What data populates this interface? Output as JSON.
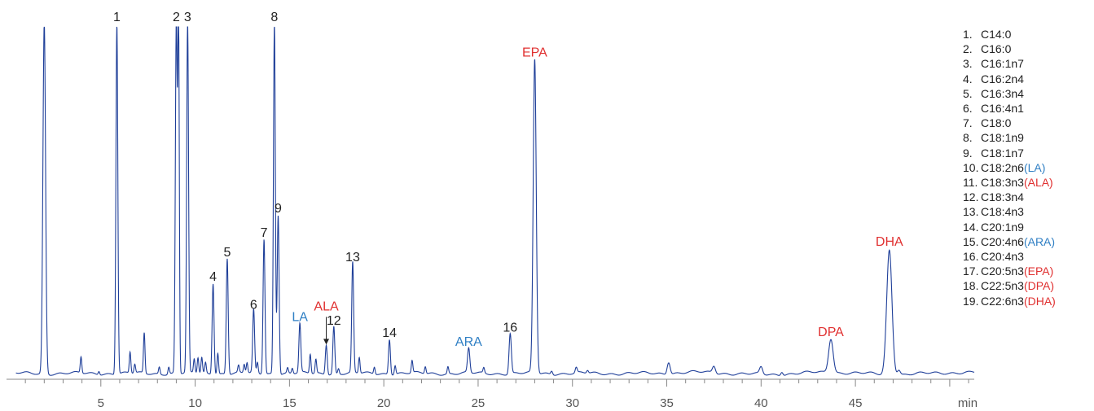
{
  "colors": {
    "trace": "#1f3f99",
    "axis": "#888888",
    "text": "#222222",
    "red": "#e03030",
    "blue": "#2f7fc4"
  },
  "chart_data": {
    "type": "line",
    "xlabel": "min",
    "xlim": [
      0,
      51.3
    ],
    "ylim": [
      0,
      100
    ],
    "xticks": [
      5,
      10,
      15,
      20,
      25,
      30,
      35,
      40,
      45
    ],
    "baseline": 1.2,
    "series": [
      {
        "peaks": [
          {
            "t": 2.0,
            "h": 100,
            "w": 0.07
          },
          {
            "t": 3.95,
            "h": 4.6,
            "w": 0.04
          },
          {
            "t": 4.9,
            "h": 1.0,
            "w": 0.04
          },
          {
            "t": 5.85,
            "h": 100,
            "w": 0.05,
            "label": "1"
          },
          {
            "t": 6.55,
            "h": 6.0,
            "w": 0.04
          },
          {
            "t": 6.8,
            "h": 2.5,
            "w": 0.04
          },
          {
            "t": 7.3,
            "h": 11.5,
            "w": 0.04
          },
          {
            "t": 8.1,
            "h": 2.0,
            "w": 0.04
          },
          {
            "t": 8.6,
            "h": 2.0,
            "w": 0.04
          },
          {
            "t": 9.0,
            "h": 100,
            "w": 0.05,
            "label": "2"
          },
          {
            "t": 9.12,
            "h": 100,
            "w": 0.04
          },
          {
            "t": 9.6,
            "h": 100,
            "w": 0.05,
            "label": "3"
          },
          {
            "t": 9.95,
            "h": 4.0,
            "w": 0.04
          },
          {
            "t": 10.15,
            "h": 4.5,
            "w": 0.04
          },
          {
            "t": 10.35,
            "h": 4.5,
            "w": 0.04
          },
          {
            "t": 10.55,
            "h": 3.0,
            "w": 0.04
          },
          {
            "t": 10.95,
            "h": 26.0,
            "w": 0.05,
            "label": "4"
          },
          {
            "t": 11.2,
            "h": 6.0,
            "w": 0.04
          },
          {
            "t": 11.7,
            "h": 33.0,
            "w": 0.05,
            "label": "5"
          },
          {
            "t": 12.3,
            "h": 2.0,
            "w": 0.04
          },
          {
            "t": 12.6,
            "h": 2.5,
            "w": 0.04
          },
          {
            "t": 12.75,
            "h": 3.0,
            "w": 0.04
          },
          {
            "t": 13.1,
            "h": 18.0,
            "w": 0.05,
            "label": "6"
          },
          {
            "t": 13.3,
            "h": 3.0,
            "w": 0.04
          },
          {
            "t": 13.65,
            "h": 38.5,
            "w": 0.05,
            "label": "7"
          },
          {
            "t": 14.2,
            "h": 100,
            "w": 0.05,
            "label": "8"
          },
          {
            "t": 14.4,
            "h": 45.5,
            "w": 0.05,
            "label": "9"
          },
          {
            "t": 14.9,
            "h": 1.5,
            "w": 0.04
          },
          {
            "t": 15.15,
            "h": 1.5,
            "w": 0.04
          },
          {
            "t": 15.55,
            "h": 14.0,
            "w": 0.05
          },
          {
            "t": 16.1,
            "h": 5.5,
            "w": 0.04
          },
          {
            "t": 16.4,
            "h": 4.0,
            "w": 0.04
          },
          {
            "t": 16.95,
            "h": 8.5,
            "w": 0.05
          },
          {
            "t": 17.35,
            "h": 13.5,
            "w": 0.05,
            "label": "12"
          },
          {
            "t": 17.6,
            "h": 1.5,
            "w": 0.04
          },
          {
            "t": 18.35,
            "h": 31.5,
            "w": 0.05,
            "label": "13"
          },
          {
            "t": 18.7,
            "h": 4.5,
            "w": 0.04
          },
          {
            "t": 19.5,
            "h": 2.0,
            "w": 0.04
          },
          {
            "t": 20.3,
            "h": 10.0,
            "w": 0.05,
            "label": "14"
          },
          {
            "t": 20.6,
            "h": 2.5,
            "w": 0.04
          },
          {
            "t": 21.5,
            "h": 3.5,
            "w": 0.04
          },
          {
            "t": 22.2,
            "h": 2.0,
            "w": 0.04
          },
          {
            "t": 23.4,
            "h": 2.0,
            "w": 0.04
          },
          {
            "t": 24.5,
            "h": 7.0,
            "w": 0.06
          },
          {
            "t": 25.3,
            "h": 1.5,
            "w": 0.04
          },
          {
            "t": 26.7,
            "h": 11.5,
            "w": 0.06,
            "label": "16"
          },
          {
            "t": 28.0,
            "h": 89.5,
            "w": 0.08
          },
          {
            "t": 28.9,
            "h": 1.0,
            "w": 0.05
          },
          {
            "t": 30.2,
            "h": 1.5,
            "w": 0.05
          },
          {
            "t": 30.8,
            "h": 0.8,
            "w": 0.05
          },
          {
            "t": 35.1,
            "h": 3.5,
            "w": 0.08
          },
          {
            "t": 37.5,
            "h": 2.0,
            "w": 0.08
          },
          {
            "t": 40.0,
            "h": 2.0,
            "w": 0.08
          },
          {
            "t": 41.1,
            "h": 1.0,
            "w": 0.06
          },
          {
            "t": 43.7,
            "h": 9.8,
            "w": 0.12
          },
          {
            "t": 46.8,
            "h": 35.5,
            "w": 0.14
          },
          {
            "t": 47.3,
            "h": 1.5,
            "w": 0.08
          }
        ]
      }
    ],
    "annotations": [
      {
        "text": "LA",
        "t": 15.55,
        "h": 14.0,
        "color": "blue"
      },
      {
        "text": "ALA",
        "t": 16.95,
        "h": 8.5,
        "color": "red",
        "arrow": true
      },
      {
        "text": "ARA",
        "t": 24.5,
        "h": 7.0,
        "color": "blue"
      },
      {
        "text": "EPA",
        "t": 28.0,
        "h": 89.5,
        "color": "red"
      },
      {
        "text": "DPA",
        "t": 43.7,
        "h": 9.8,
        "color": "red"
      },
      {
        "text": "DHA",
        "t": 46.8,
        "h": 35.5,
        "color": "red"
      }
    ]
  },
  "legend": {
    "items": [
      {
        "num": "1.",
        "name": "C14:0",
        "abbr": "",
        "abbr_color": ""
      },
      {
        "num": "2.",
        "name": "C16:0",
        "abbr": "",
        "abbr_color": ""
      },
      {
        "num": "3.",
        "name": "C16:1n7",
        "abbr": "",
        "abbr_color": ""
      },
      {
        "num": "4.",
        "name": "C16:2n4",
        "abbr": "",
        "abbr_color": ""
      },
      {
        "num": "5.",
        "name": "C16:3n4",
        "abbr": "",
        "abbr_color": ""
      },
      {
        "num": "6.",
        "name": "C16:4n1",
        "abbr": "",
        "abbr_color": ""
      },
      {
        "num": "7.",
        "name": "C18:0",
        "abbr": "",
        "abbr_color": ""
      },
      {
        "num": "8.",
        "name": "C18:1n9",
        "abbr": "",
        "abbr_color": ""
      },
      {
        "num": "9.",
        "name": "C18:1n7",
        "abbr": "",
        "abbr_color": ""
      },
      {
        "num": "10.",
        "name": "C18:2n6",
        "abbr": "(LA)",
        "abbr_color": "blue"
      },
      {
        "num": "11.",
        "name": "C18:3n3",
        "abbr": "(ALA)",
        "abbr_color": "red"
      },
      {
        "num": "12.",
        "name": "C18:3n4",
        "abbr": "",
        "abbr_color": ""
      },
      {
        "num": "13.",
        "name": "C18:4n3",
        "abbr": "",
        "abbr_color": ""
      },
      {
        "num": "14.",
        "name": "C20:1n9",
        "abbr": "",
        "abbr_color": ""
      },
      {
        "num": "15.",
        "name": "C20:4n6",
        "abbr": "(ARA)",
        "abbr_color": "blue"
      },
      {
        "num": "16.",
        "name": "C20:4n3",
        "abbr": "",
        "abbr_color": ""
      },
      {
        "num": "17.",
        "name": "C20:5n3",
        "abbr": "(EPA)",
        "abbr_color": "red"
      },
      {
        "num": "18.",
        "name": "C22:5n3",
        "abbr": "(DPA)",
        "abbr_color": "red"
      },
      {
        "num": "19.",
        "name": "C22:6n3",
        "abbr": "(DHA)",
        "abbr_color": "red"
      }
    ]
  }
}
